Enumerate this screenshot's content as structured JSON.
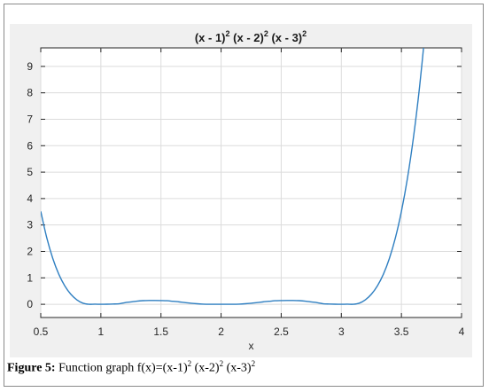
{
  "caption": {
    "label": "Figure 5:",
    "text_prefix": " Function graph f(x)=(x-1)",
    "text_mid1": " (x-2)",
    "text_mid2": " (x-3)",
    "exponent": "2"
  },
  "chart_data": {
    "type": "line",
    "title": "(x - 1)",
    "title_parts": [
      "(x - 1)",
      "2",
      " (x - 2)",
      "2",
      " (x - 3)",
      "2"
    ],
    "xlabel": "x",
    "ylabel": "",
    "xlim": [
      0.5,
      4
    ],
    "ylim": [
      -0.5,
      9.7
    ],
    "xticks": [
      0.5,
      1,
      1.5,
      2,
      2.5,
      3,
      3.5,
      4
    ],
    "xtick_labels": [
      "0.5",
      "1",
      "1.5",
      "2",
      "2.5",
      "3",
      "3.5",
      "4"
    ],
    "yticks": [
      0,
      1,
      2,
      3,
      4,
      5,
      6,
      7,
      8,
      9
    ],
    "ytick_labels": [
      "0",
      "1",
      "2",
      "3",
      "4",
      "5",
      "6",
      "7",
      "8",
      "9"
    ],
    "grid": true,
    "series": [
      {
        "color": "#2f7fc1",
        "x": [
          0.5,
          0.55,
          0.6,
          0.65,
          0.7,
          0.75,
          0.8,
          0.85,
          0.9,
          0.95,
          1.0,
          1.05,
          1.1,
          1.15,
          1.2,
          1.25,
          1.3,
          1.35,
          1.4,
          1.45,
          1.5,
          1.55,
          1.6,
          1.65,
          1.7,
          1.75,
          1.8,
          1.85,
          1.9,
          1.95,
          2.0,
          2.05,
          2.1,
          2.15,
          2.2,
          2.25,
          2.3,
          2.35,
          2.4,
          2.45,
          2.5,
          2.55,
          2.6,
          2.65,
          2.7,
          2.75,
          2.8,
          2.85,
          2.9,
          2.95,
          3.0,
          3.05,
          3.1,
          3.15,
          3.2,
          3.25,
          3.3,
          3.35,
          3.4,
          3.45,
          3.5,
          3.55,
          3.6,
          3.65,
          3.7
        ],
        "y": [
          3.5156,
          2.5164,
          1.7345,
          1.1372,
          0.6959,
          0.3809,
          0.1706,
          0.0439,
          0.0013,
          0.0039,
          0.0,
          0.0029,
          0.01,
          0.0194,
          0.0614,
          0.09,
          0.1199,
          0.1371,
          0.1444,
          0.1442,
          0.1406,
          0.1338,
          0.113,
          0.0912,
          0.065,
          0.0388,
          0.02,
          0.007,
          0.0008,
          0.0001,
          0.0,
          0.0001,
          0.0008,
          0.007,
          0.02,
          0.0388,
          0.065,
          0.0912,
          0.113,
          0.1338,
          0.1406,
          0.1442,
          0.1444,
          0.1371,
          0.1199,
          0.09,
          0.0614,
          0.0194,
          0.01,
          0.0029,
          0.0,
          0.0039,
          0.0013,
          0.0439,
          0.1706,
          0.3809,
          0.6959,
          1.1372,
          1.7345,
          2.5164,
          3.5156,
          4.7648,
          6.3089,
          8.186,
          10.4443
        ]
      }
    ]
  }
}
